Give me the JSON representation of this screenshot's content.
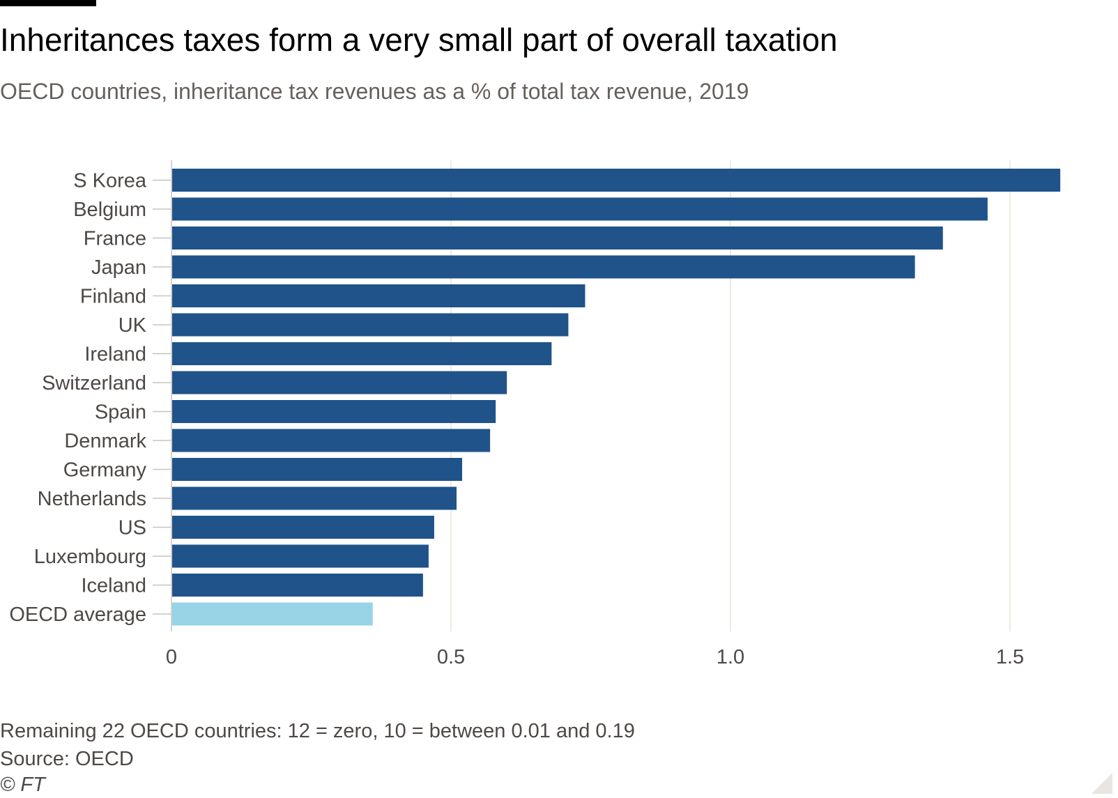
{
  "title": "Inheritances taxes form a very small part of overall taxation",
  "subtitle": "OECD countries, inheritance tax revenues as a % of total tax revenue, 2019",
  "footer": {
    "note": "Remaining 22 OECD countries: 12 = zero, 10 = between 0.01 and 0.19",
    "source": "Source: OECD",
    "copyright": "© FT"
  },
  "colors": {
    "bar": "#1f538a",
    "highlight": "#96d4e6",
    "gridline": "#e8e2d8",
    "tick": "#c8c4bf",
    "label": "#4d4845"
  },
  "chart_data": {
    "type": "bar",
    "orientation": "horizontal",
    "title": "Inheritances taxes form a very small part of overall taxation",
    "xlabel": "",
    "ylabel": "",
    "xlim": [
      0,
      1.6
    ],
    "xticks": [
      0,
      0.5,
      1.0,
      1.5
    ],
    "xtick_labels": [
      "0",
      "0.5",
      "1.0",
      "1.5"
    ],
    "grid": true,
    "categories": [
      "S Korea",
      "Belgium",
      "France",
      "Japan",
      "Finland",
      "UK",
      "Ireland",
      "Switzerland",
      "Spain",
      "Denmark",
      "Germany",
      "Netherlands",
      "US",
      "Luxembourg",
      "Iceland",
      "OECD average"
    ],
    "values": [
      1.59,
      1.46,
      1.38,
      1.33,
      0.74,
      0.71,
      0.68,
      0.6,
      0.58,
      0.57,
      0.52,
      0.51,
      0.47,
      0.46,
      0.45,
      0.36
    ],
    "highlight": [
      "OECD average"
    ]
  }
}
